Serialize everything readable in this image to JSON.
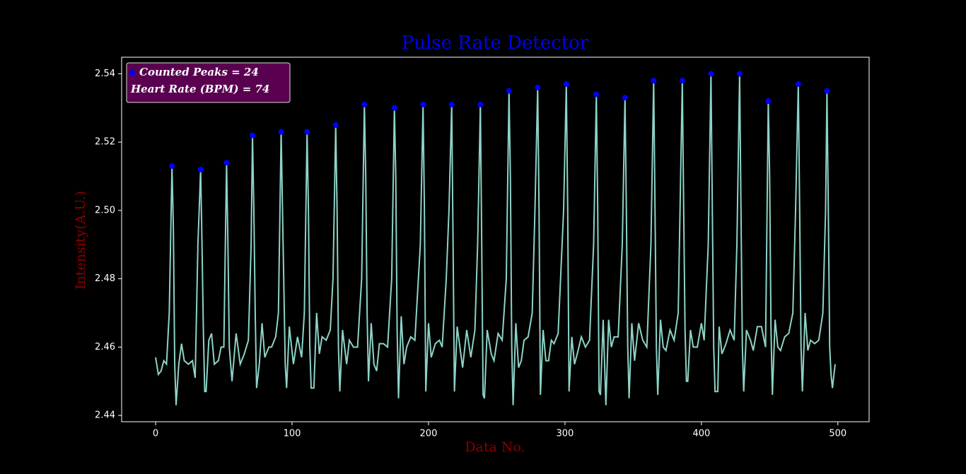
{
  "chart_data": {
    "type": "line",
    "title": "Pulse Rate Detector",
    "xlabel": "Data No.",
    "ylabel": "Intensity(A.U.)",
    "xlim": [
      -24.9,
      522.9
    ],
    "ylim": [
      2.43815,
      2.54485
    ],
    "xticks": [
      0,
      100,
      200,
      300,
      400,
      500
    ],
    "yticks": [
      {
        "value": 2.44,
        "label": "2.44"
      },
      {
        "value": 2.46,
        "label": "2.46"
      },
      {
        "value": 2.48,
        "label": "2.48"
      },
      {
        "value": 2.5,
        "label": "2.50"
      },
      {
        "value": 2.52,
        "label": "2.52"
      },
      {
        "value": 2.54,
        "label": "2.54"
      }
    ],
    "grid": false,
    "legend": "upper left",
    "annotation": "Heart Rate (BPM) = 74",
    "series": [
      {
        "name": "Intensity",
        "type": "line",
        "color": "#8dd3c7",
        "x": [
          0,
          2,
          4,
          6,
          8,
          10,
          12,
          13,
          14,
          15,
          17,
          19,
          21,
          24,
          27,
          29,
          31,
          33,
          34,
          35,
          36,
          37,
          39,
          41,
          43,
          46,
          48,
          50,
          52,
          53,
          54,
          56,
          59,
          62,
          65,
          68,
          70,
          71,
          72,
          73,
          74,
          76,
          78,
          80,
          83,
          85,
          88,
          90,
          92,
          93,
          95,
          96,
          98,
          101,
          104,
          107,
          109,
          111,
          112,
          113,
          114,
          116,
          118,
          120,
          122,
          125,
          128,
          130,
          132,
          133,
          134,
          135,
          137,
          140,
          142,
          145,
          148,
          151,
          153,
          154,
          155,
          156,
          158,
          160,
          162,
          164,
          167,
          170,
          173,
          175,
          176,
          177,
          178,
          180,
          182,
          184,
          187,
          190,
          194,
          196,
          197,
          198,
          200,
          202,
          205,
          208,
          210,
          213,
          215,
          217,
          218,
          219,
          221,
          223,
          225,
          228,
          231,
          234,
          236,
          238,
          239,
          240,
          241,
          243,
          246,
          248,
          251,
          254,
          257,
          259,
          260,
          261,
          262,
          264,
          266,
          268,
          270,
          273,
          276,
          278,
          280,
          281,
          282,
          284,
          286,
          288,
          290,
          292,
          295,
          299,
          301,
          302,
          303,
          305,
          307,
          309,
          312,
          315,
          318,
          321,
          323,
          324,
          325,
          326,
          328,
          330,
          332,
          334,
          336,
          339,
          342,
          344,
          345,
          346,
          347,
          349,
          351,
          354,
          357,
          360,
          363,
          365,
          366,
          367,
          368,
          370,
          372,
          374,
          377,
          380,
          383,
          386,
          387,
          388,
          389,
          390,
          392,
          394,
          397,
          400,
          402,
          405,
          407,
          408,
          409,
          410,
          412,
          413,
          415,
          418,
          421,
          424,
          426,
          428,
          429,
          430,
          431,
          433,
          436,
          438,
          441,
          444,
          447,
          449,
          450,
          451,
          452,
          454,
          456,
          458,
          461,
          464,
          467,
          469,
          471,
          472,
          473,
          474,
          476,
          478,
          480,
          483,
          486,
          489,
          491,
          492,
          493,
          494,
          495,
          496,
          498
        ],
        "values": [
          2.457,
          2.452,
          2.453,
          2.456,
          2.455,
          2.47,
          2.513,
          2.495,
          2.455,
          2.443,
          2.455,
          2.461,
          2.456,
          2.455,
          2.456,
          2.451,
          2.49,
          2.512,
          2.49,
          2.465,
          2.447,
          2.447,
          2.462,
          2.464,
          2.455,
          2.456,
          2.46,
          2.46,
          2.514,
          2.49,
          2.46,
          2.45,
          2.464,
          2.455,
          2.458,
          2.462,
          2.49,
          2.522,
          2.5,
          2.47,
          2.448,
          2.455,
          2.467,
          2.457,
          2.46,
          2.46,
          2.463,
          2.47,
          2.523,
          2.5,
          2.455,
          2.448,
          2.466,
          2.455,
          2.463,
          2.457,
          2.47,
          2.523,
          2.5,
          2.46,
          2.448,
          2.448,
          2.47,
          2.458,
          2.463,
          2.462,
          2.465,
          2.48,
          2.525,
          2.5,
          2.46,
          2.447,
          2.465,
          2.455,
          2.462,
          2.46,
          2.46,
          2.48,
          2.531,
          2.51,
          2.47,
          2.45,
          2.467,
          2.455,
          2.453,
          2.461,
          2.461,
          2.46,
          2.48,
          2.53,
          2.51,
          2.465,
          2.445,
          2.469,
          2.455,
          2.46,
          2.463,
          2.462,
          2.49,
          2.531,
          2.5,
          2.447,
          2.467,
          2.457,
          2.461,
          2.462,
          2.46,
          2.48,
          2.5,
          2.531,
          2.49,
          2.447,
          2.466,
          2.46,
          2.454,
          2.465,
          2.457,
          2.465,
          2.49,
          2.531,
          2.49,
          2.446,
          2.445,
          2.465,
          2.458,
          2.456,
          2.464,
          2.462,
          2.48,
          2.535,
          2.51,
          2.46,
          2.443,
          2.467,
          2.454,
          2.456,
          2.462,
          2.463,
          2.47,
          2.5,
          2.536,
          2.5,
          2.446,
          2.465,
          2.456,
          2.456,
          2.462,
          2.461,
          2.464,
          2.5,
          2.537,
          2.5,
          2.447,
          2.463,
          2.455,
          2.458,
          2.463,
          2.46,
          2.462,
          2.49,
          2.534,
          2.5,
          2.447,
          2.446,
          2.468,
          2.443,
          2.468,
          2.46,
          2.463,
          2.463,
          2.49,
          2.533,
          2.5,
          2.46,
          2.445,
          2.467,
          2.456,
          2.467,
          2.462,
          2.46,
          2.49,
          2.538,
          2.5,
          2.46,
          2.446,
          2.468,
          2.46,
          2.459,
          2.465,
          2.462,
          2.47,
          2.538,
          2.5,
          2.465,
          2.45,
          2.45,
          2.465,
          2.46,
          2.46,
          2.467,
          2.462,
          2.49,
          2.54,
          2.5,
          2.46,
          2.447,
          2.447,
          2.466,
          2.458,
          2.461,
          2.465,
          2.462,
          2.49,
          2.54,
          2.5,
          2.46,
          2.447,
          2.465,
          2.462,
          2.459,
          2.466,
          2.466,
          2.46,
          2.532,
          2.51,
          2.465,
          2.446,
          2.468,
          2.46,
          2.459,
          2.463,
          2.464,
          2.47,
          2.5,
          2.537,
          2.5,
          2.46,
          2.447,
          2.47,
          2.459,
          2.462,
          2.461,
          2.462,
          2.47,
          2.5,
          2.535,
          2.5,
          2.46,
          2.452,
          2.448,
          2.455
        ]
      },
      {
        "name": "Counted Peaks = 24",
        "type": "scatter",
        "color": "#0000ff",
        "x": [
          12,
          33,
          52,
          71,
          92,
          111,
          132,
          153,
          175,
          196,
          217,
          238,
          259,
          280,
          301,
          323,
          344,
          365,
          386,
          407,
          428,
          449,
          471,
          492
        ],
        "values": [
          2.513,
          2.512,
          2.514,
          2.522,
          2.523,
          2.523,
          2.525,
          2.531,
          2.53,
          2.531,
          2.531,
          2.531,
          2.535,
          2.536,
          2.537,
          2.534,
          2.533,
          2.538,
          2.538,
          2.54,
          2.54,
          2.532,
          2.537,
          2.535
        ]
      }
    ]
  }
}
